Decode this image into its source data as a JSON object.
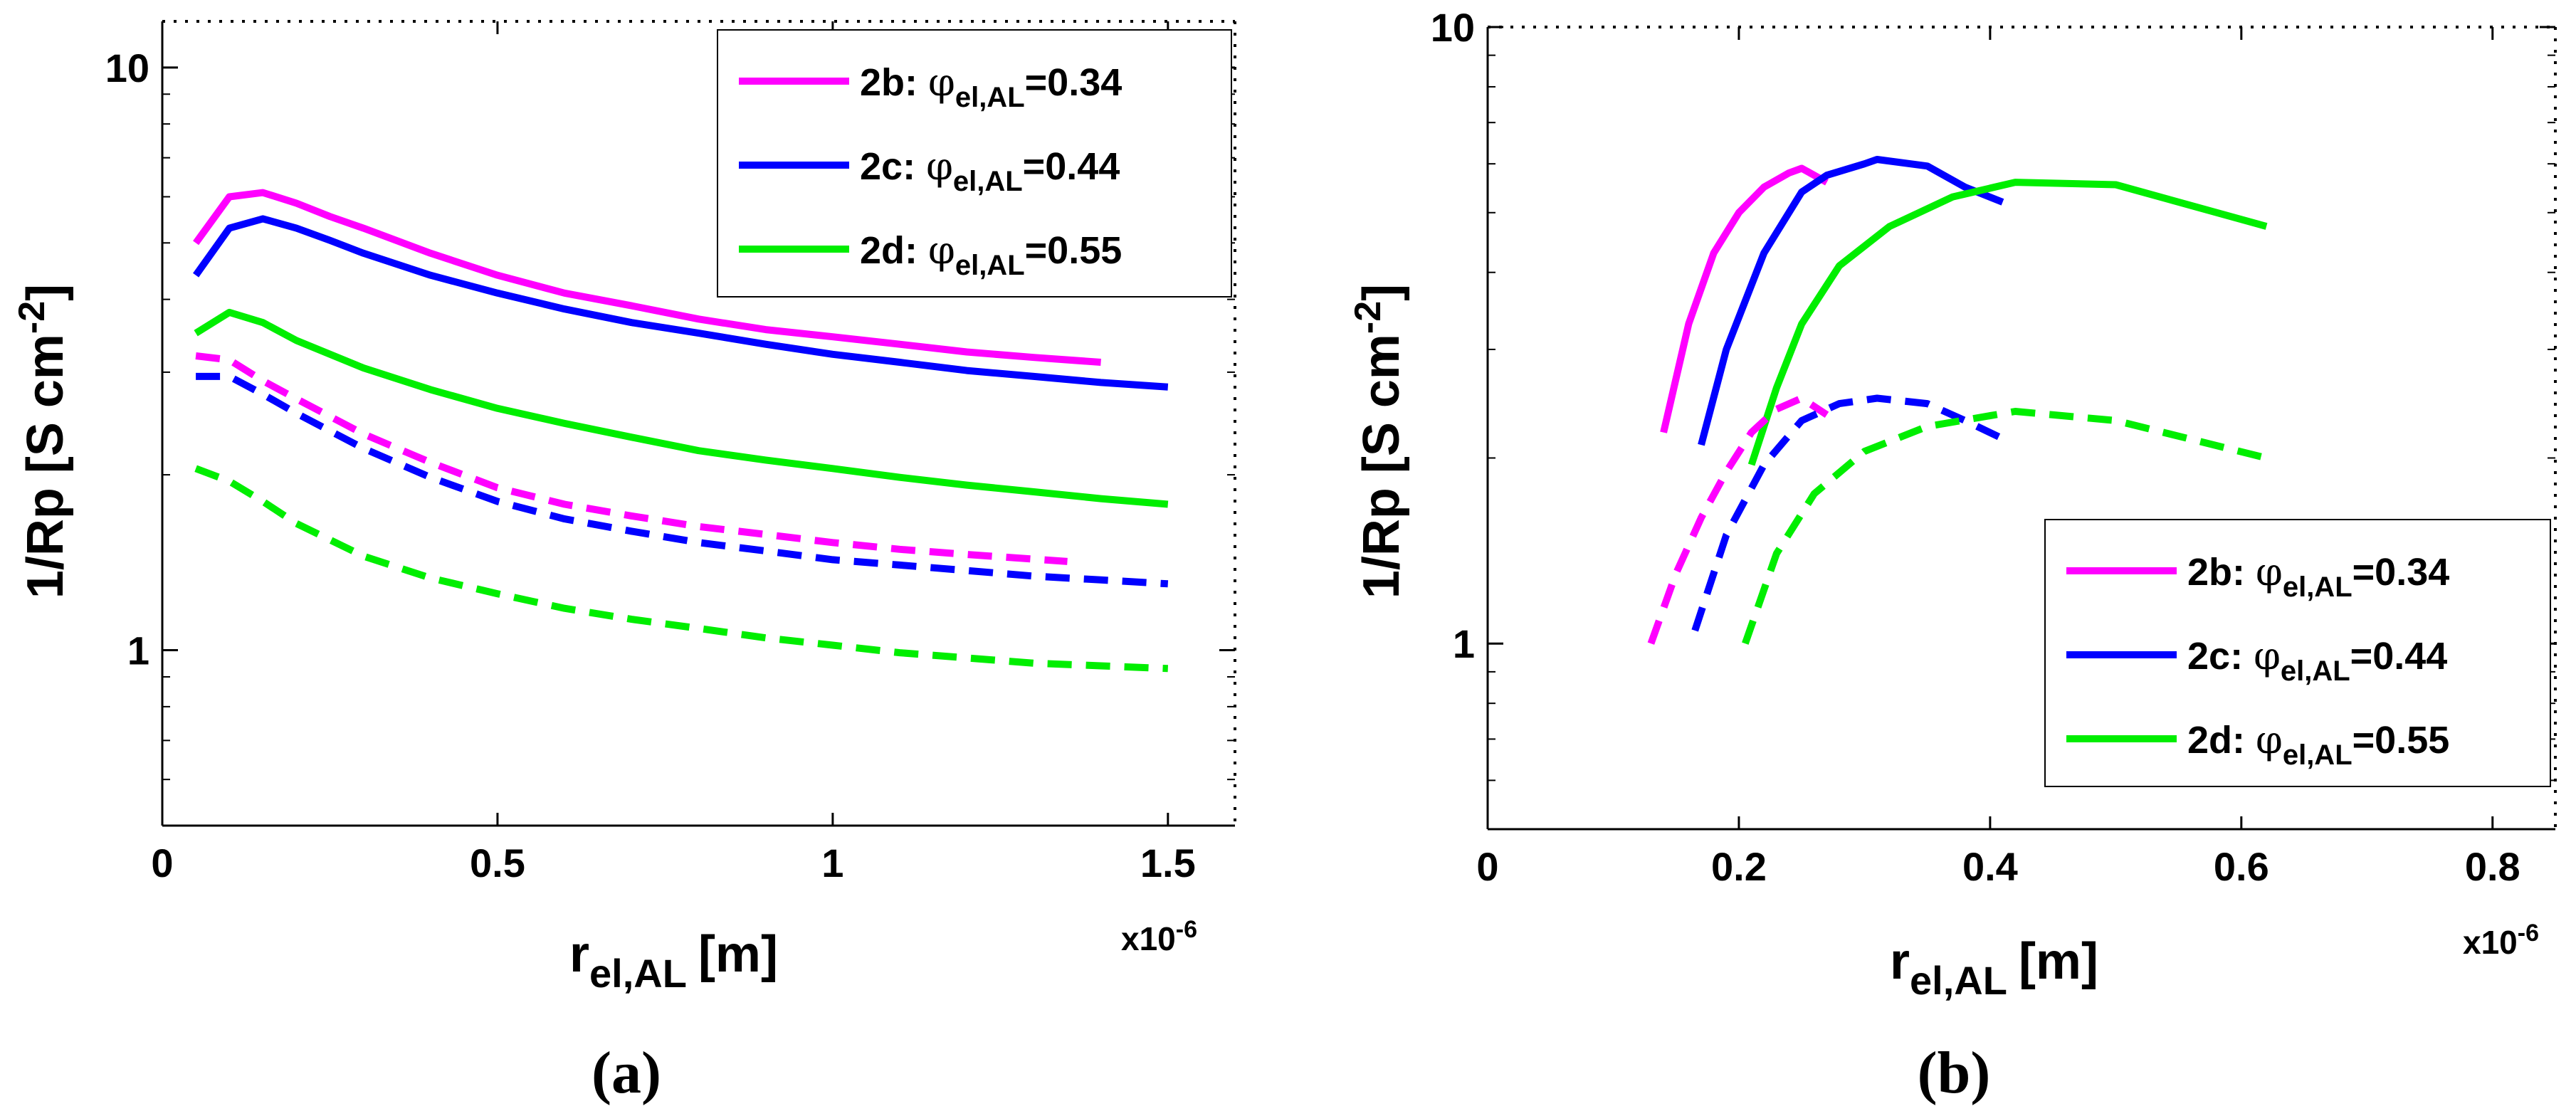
{
  "figure": {
    "title": ""
  },
  "chart_data": [
    {
      "panel": "a",
      "panel_label_text": "(a)",
      "type": "line",
      "xlabel_main": "r",
      "xlabel_sub": "el,AL",
      "xlabel_unit": "[m]",
      "ylabel_main": "1/Rp [S cm",
      "ylabel_sup": "-2",
      "ylabel_end": "]",
      "exponent_label": "x10",
      "exponent_power": "-6",
      "xlim": [
        0,
        1.6
      ],
      "ylim": [
        0.5,
        12
      ],
      "yscale": "log",
      "xticks": [
        0,
        0.5,
        1,
        1.5
      ],
      "xtick_labels": [
        "0",
        "0.5",
        "1",
        "1.5"
      ],
      "yticks": [
        1,
        10
      ],
      "ytick_labels": [
        "1",
        "10"
      ],
      "legend_position": "top-right",
      "series": [
        {
          "name": "2b: φel,AL=0.34",
          "legend_prefix": "2b: ",
          "legend_sym": "φ",
          "legend_sub": "el,AL",
          "legend_val": "=0.34",
          "color": "#ff00ff",
          "style": "solid",
          "x": [
            0.05,
            0.1,
            0.15,
            0.2,
            0.25,
            0.3,
            0.4,
            0.5,
            0.6,
            0.7,
            0.8,
            0.9,
            1.0,
            1.1,
            1.2,
            1.3,
            1.4
          ],
          "y": [
            5.0,
            6.0,
            6.1,
            5.85,
            5.55,
            5.3,
            4.8,
            4.4,
            4.1,
            3.9,
            3.7,
            3.55,
            3.45,
            3.35,
            3.25,
            3.18,
            3.12
          ]
        },
        {
          "name": "2c: φel,AL=0.44",
          "legend_prefix": "2c: ",
          "legend_sym": "φ",
          "legend_sub": "el,AL",
          "legend_val": "=0.44",
          "color": "#0000ff",
          "style": "solid",
          "x": [
            0.05,
            0.1,
            0.15,
            0.2,
            0.25,
            0.3,
            0.4,
            0.5,
            0.6,
            0.7,
            0.8,
            0.9,
            1.0,
            1.1,
            1.2,
            1.3,
            1.4,
            1.5
          ],
          "y": [
            4.4,
            5.3,
            5.5,
            5.3,
            5.05,
            4.8,
            4.4,
            4.1,
            3.85,
            3.65,
            3.5,
            3.35,
            3.22,
            3.12,
            3.02,
            2.95,
            2.88,
            2.83
          ]
        },
        {
          "name": "2d: φel,AL=0.55",
          "legend_prefix": "2d: ",
          "legend_sym": "φ",
          "legend_sub": "el,AL",
          "legend_val": "=0.55",
          "color": "#00ee00",
          "style": "solid",
          "x": [
            0.05,
            0.1,
            0.15,
            0.2,
            0.3,
            0.4,
            0.5,
            0.6,
            0.7,
            0.8,
            0.9,
            1.0,
            1.1,
            1.2,
            1.3,
            1.4,
            1.5
          ],
          "y": [
            3.5,
            3.8,
            3.65,
            3.4,
            3.05,
            2.8,
            2.6,
            2.45,
            2.32,
            2.2,
            2.12,
            2.05,
            1.98,
            1.92,
            1.87,
            1.82,
            1.78
          ]
        },
        {
          "name": "2b dashed",
          "color": "#ff00ff",
          "style": "dashed",
          "x": [
            0.05,
            0.1,
            0.15,
            0.2,
            0.3,
            0.4,
            0.5,
            0.6,
            0.7,
            0.8,
            0.9,
            1.0,
            1.1,
            1.2,
            1.35
          ],
          "y": [
            3.2,
            3.15,
            2.9,
            2.7,
            2.35,
            2.1,
            1.9,
            1.78,
            1.7,
            1.63,
            1.58,
            1.53,
            1.49,
            1.46,
            1.42
          ]
        },
        {
          "name": "2c dashed",
          "color": "#0000ff",
          "style": "dashed",
          "x": [
            0.05,
            0.1,
            0.15,
            0.2,
            0.3,
            0.4,
            0.5,
            0.6,
            0.7,
            0.8,
            0.9,
            1.0,
            1.1,
            1.2,
            1.3,
            1.4,
            1.5
          ],
          "y": [
            2.95,
            2.95,
            2.75,
            2.55,
            2.22,
            1.98,
            1.8,
            1.68,
            1.6,
            1.53,
            1.48,
            1.43,
            1.4,
            1.37,
            1.34,
            1.32,
            1.3
          ]
        },
        {
          "name": "2d dashed",
          "color": "#00ee00",
          "style": "dashed",
          "x": [
            0.05,
            0.1,
            0.15,
            0.2,
            0.3,
            0.4,
            0.5,
            0.6,
            0.7,
            0.8,
            0.9,
            1.0,
            1.1,
            1.2,
            1.3,
            1.4,
            1.5
          ],
          "y": [
            2.05,
            1.95,
            1.8,
            1.65,
            1.45,
            1.33,
            1.25,
            1.18,
            1.13,
            1.09,
            1.05,
            1.02,
            0.99,
            0.97,
            0.95,
            0.94,
            0.93
          ]
        }
      ]
    },
    {
      "panel": "b",
      "panel_label_text": "(b)",
      "type": "line",
      "xlabel_main": "r",
      "xlabel_sub": "el,AL",
      "xlabel_unit": "[m]",
      "ylabel_main": "1/Rp [S cm",
      "ylabel_sup": "-2",
      "ylabel_end": "]",
      "exponent_label": "x10",
      "exponent_power": "-6",
      "xlim": [
        0,
        0.85
      ],
      "ylim": [
        0.5,
        10
      ],
      "yscale": "log",
      "xticks": [
        0,
        0.2,
        0.4,
        0.6,
        0.8
      ],
      "xtick_labels": [
        "0",
        "0.2",
        "0.4",
        "0.6",
        "0.8"
      ],
      "yticks": [
        1,
        10
      ],
      "ytick_labels": [
        "1",
        "10"
      ],
      "legend_position": "bottom-right",
      "series": [
        {
          "name": "2b: φel,AL=0.34",
          "legend_prefix": "2b: ",
          "legend_sym": "φ",
          "legend_sub": "el,AL",
          "legend_val": "=0.34",
          "color": "#ff00ff",
          "style": "solid",
          "x": [
            0.14,
            0.16,
            0.18,
            0.2,
            0.22,
            0.24,
            0.25,
            0.27
          ],
          "y": [
            2.2,
            3.3,
            4.3,
            5.0,
            5.5,
            5.8,
            5.9,
            5.6
          ]
        },
        {
          "name": "2c: φel,AL=0.44",
          "legend_prefix": "2c: ",
          "legend_sym": "φ",
          "legend_sub": "el,AL",
          "legend_val": "=0.44",
          "color": "#0000ff",
          "style": "solid",
          "x": [
            0.17,
            0.19,
            0.22,
            0.25,
            0.27,
            0.3,
            0.31,
            0.35,
            0.38,
            0.41
          ],
          "y": [
            2.1,
            3.0,
            4.3,
            5.4,
            5.75,
            6.0,
            6.1,
            5.95,
            5.5,
            5.2
          ]
        },
        {
          "name": "2d: φel,AL=0.55",
          "legend_prefix": "2d: ",
          "legend_sym": "φ",
          "legend_sub": "el,AL",
          "legend_val": "=0.55",
          "color": "#00ee00",
          "style": "solid",
          "x": [
            0.21,
            0.23,
            0.25,
            0.28,
            0.32,
            0.37,
            0.42,
            0.5,
            0.62
          ],
          "y": [
            1.95,
            2.6,
            3.3,
            4.1,
            4.75,
            5.3,
            5.6,
            5.55,
            4.75
          ]
        },
        {
          "name": "2b dashed",
          "color": "#ff00ff",
          "style": "dashed",
          "x": [
            0.13,
            0.15,
            0.17,
            0.19,
            0.21,
            0.23,
            0.25,
            0.27
          ],
          "y": [
            1.0,
            1.3,
            1.6,
            1.9,
            2.2,
            2.4,
            2.5,
            2.35
          ]
        },
        {
          "name": "2c dashed",
          "color": "#0000ff",
          "style": "dashed",
          "x": [
            0.165,
            0.19,
            0.22,
            0.25,
            0.28,
            0.31,
            0.35,
            0.38,
            0.41
          ],
          "y": [
            1.05,
            1.5,
            1.95,
            2.3,
            2.45,
            2.5,
            2.45,
            2.3,
            2.15
          ]
        },
        {
          "name": "2d dashed",
          "color": "#00ee00",
          "style": "dashed",
          "x": [
            0.205,
            0.23,
            0.26,
            0.3,
            0.35,
            0.42,
            0.5,
            0.62
          ],
          "y": [
            1.0,
            1.4,
            1.75,
            2.05,
            2.25,
            2.38,
            2.3,
            2.0
          ]
        }
      ]
    }
  ]
}
